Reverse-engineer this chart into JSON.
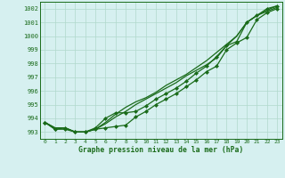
{
  "title": "Graphe pression niveau de la mer (hPa)",
  "hours": [
    0,
    1,
    2,
    3,
    4,
    5,
    6,
    7,
    8,
    9,
    10,
    11,
    12,
    13,
    14,
    15,
    16,
    17,
    18,
    19,
    20,
    21,
    22,
    23
  ],
  "ylim": [
    992.5,
    1002.5
  ],
  "xlim": [
    -0.5,
    23.5
  ],
  "yticks": [
    993,
    994,
    995,
    996,
    997,
    998,
    999,
    1000,
    1001,
    1002
  ],
  "bg_color": "#d6f0f0",
  "grid_color": "#b0d8cc",
  "line_color": "#1a6b1a",
  "line1": [
    993.7,
    993.3,
    993.3,
    993.0,
    993.0,
    993.2,
    993.6,
    994.1,
    994.5,
    995.0,
    995.4,
    995.8,
    996.2,
    996.6,
    997.1,
    997.5,
    997.9,
    998.4,
    999.3,
    1000.0,
    1001.0,
    1001.5,
    1001.8,
    1002.1
  ],
  "line2": [
    993.7,
    993.3,
    993.3,
    993.0,
    993.0,
    993.2,
    993.7,
    994.3,
    994.8,
    995.2,
    995.5,
    995.9,
    996.4,
    996.8,
    997.2,
    997.7,
    998.2,
    998.8,
    999.4,
    1000.0,
    1001.0,
    1001.5,
    1001.9,
    1002.2
  ],
  "line3_marked": [
    993.7,
    993.2,
    993.2,
    993.0,
    993.0,
    993.3,
    994.0,
    994.4,
    994.4,
    994.5,
    994.9,
    995.4,
    995.8,
    996.2,
    996.7,
    997.3,
    997.8,
    998.5,
    999.3,
    999.6,
    1001.0,
    1001.5,
    1002.0,
    1002.2
  ],
  "line4_marked": [
    993.7,
    993.2,
    993.3,
    993.0,
    993.0,
    993.2,
    993.3,
    993.4,
    993.5,
    994.1,
    994.5,
    995.0,
    995.4,
    995.8,
    996.3,
    996.8,
    997.4,
    997.8,
    999.0,
    999.5,
    999.9,
    1001.2,
    1001.7,
    1002.0
  ]
}
